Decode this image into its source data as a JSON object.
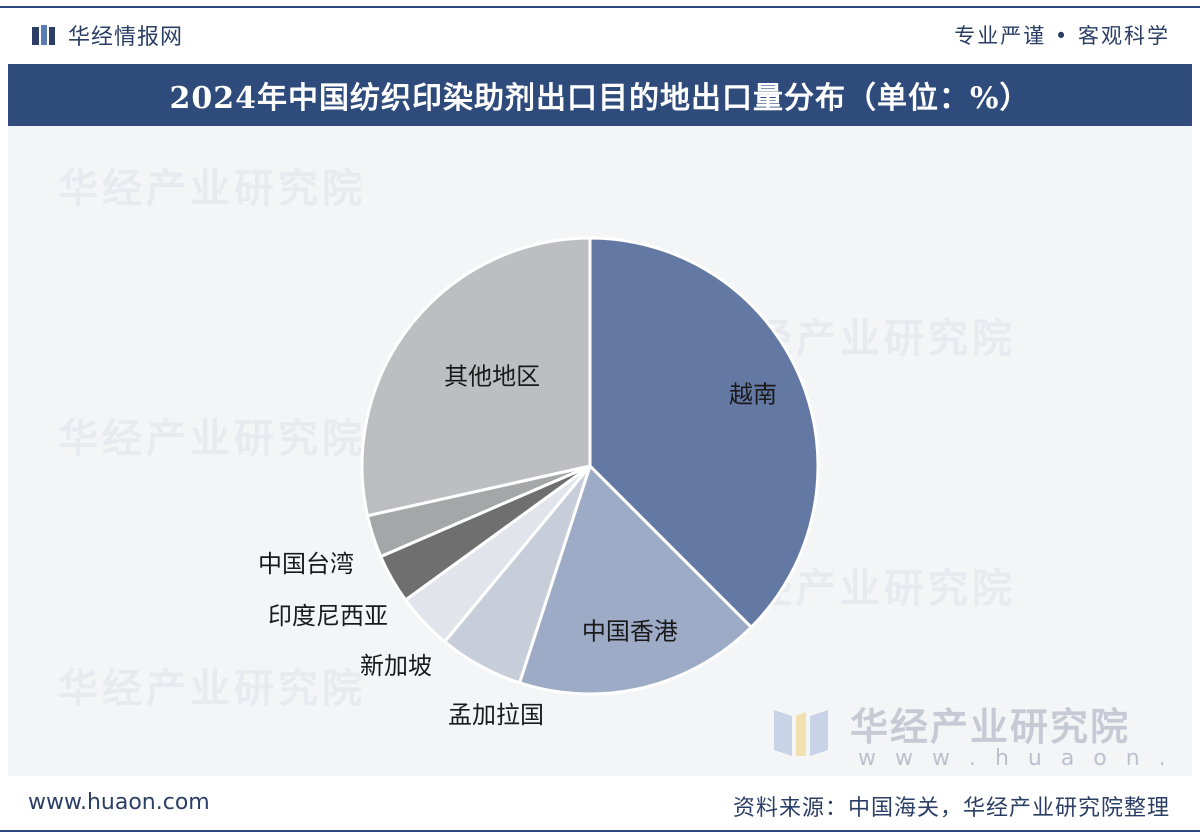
{
  "header": {
    "brand": "华经情报网",
    "slogan": "专业严谨 • 客观科学"
  },
  "title": "2024年中国纺织印染助剂出口目的地出口量分布（单位：%）",
  "watermark": {
    "text": "华经产业研究院",
    "url": "w w w . h u a o n . c o m"
  },
  "footer": {
    "url": "www.huaon.com",
    "source": "资料来源：中国海关，华经产业研究院整理"
  },
  "colors": {
    "navy": "#2f4b7c",
    "slice_vietnam": "#6379a3",
    "slice_hongkong": "#9eabc6",
    "slice_bangladesh": "#c7ceda",
    "slice_singapore": "#e1e4ea",
    "slice_indonesia": "#6f6f70",
    "slice_taiwan": "#a5a6a8",
    "slice_others": "#bdbec1"
  },
  "chart_data": {
    "type": "pie",
    "title": "2024年中国纺织印染助剂出口目的地出口量分布（单位：%）",
    "start_angle_deg": 0,
    "direction": "clockwise",
    "slices": [
      {
        "label": "越南",
        "value": 37.5,
        "color": "#6379a3"
      },
      {
        "label": "中国香港",
        "value": 17.5,
        "color": "#9eabc6"
      },
      {
        "label": "孟加拉国",
        "value": 6.0,
        "color": "#c7ceda"
      },
      {
        "label": "新加坡",
        "value": 4.0,
        "color": "#e1e4ea"
      },
      {
        "label": "印度尼西亚",
        "value": 3.5,
        "color": "#6f6f70"
      },
      {
        "label": "中国台湾",
        "value": 3.0,
        "color": "#a5a6a8"
      },
      {
        "label": "其他地区",
        "value": 28.5,
        "color": "#bdbec1"
      }
    ]
  }
}
